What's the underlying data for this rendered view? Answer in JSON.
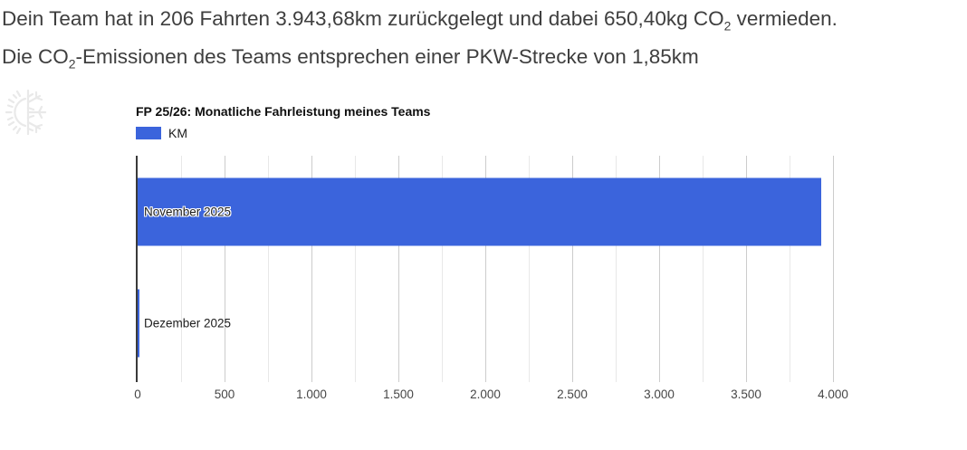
{
  "header": {
    "line1_a": "Dein Team hat in 206 Fahrten 3.943,68km zurückgelegt und dabei 650,40kg CO",
    "line1_sub": "2",
    "line1_b": " vermieden.",
    "line2_a": "Die CO",
    "line2_sub": "2",
    "line2_b": "-Emissionen des Teams entsprechen einer PKW-Strecke von 1,85km",
    "text_color": "#3e3e3e"
  },
  "icons": {
    "watermark": "sun-snowflake-climate-icon",
    "watermark_color": "#e9e9e9"
  },
  "chart_data": {
    "type": "bar",
    "orientation": "horizontal",
    "title": "FP 25/26: Monatliche Fahrleistung meines Teams",
    "legend": [
      {
        "label": "KM",
        "color": "#3b64dc"
      }
    ],
    "legend_position": "top-left",
    "categories": [
      "November 2025",
      "Dezember 2025"
    ],
    "values": [
      3933.68,
      10
    ],
    "xlabel": "",
    "ylabel": "",
    "xlim": [
      0,
      4000
    ],
    "x_ticks": [
      0,
      500,
      1000,
      1500,
      2000,
      2500,
      3000,
      3500,
      4000
    ],
    "x_tick_labels": [
      "0",
      "500",
      "1.000",
      "1.500",
      "2.000",
      "2.500",
      "3.000",
      "3.500",
      "4.000"
    ],
    "minor_grid_step": 250,
    "grid": true,
    "bar_color": "#3b64dc",
    "axis_color": "#3a3a3a",
    "major_grid_color": "#cccccc",
    "minor_grid_color": "#e8e8e8",
    "tick_label_color": "#464646"
  }
}
